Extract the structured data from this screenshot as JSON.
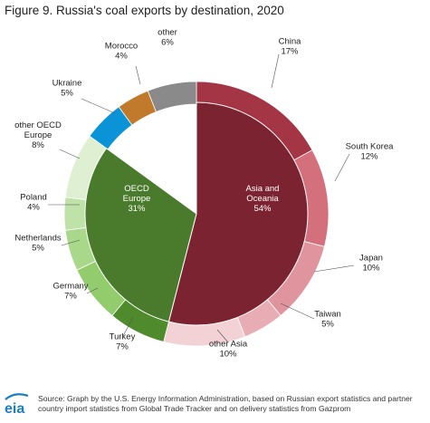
{
  "title": "Figure 9. Russia's coal exports by destination, 2020",
  "source": "Source: Graph by the U.S. Energy Information Administration, based on Russian export statistics and partner country import statistics from Global Trade Tracker and on delivery statistics from Gazprom",
  "logo_text": "eia",
  "colors": {
    "asia_center": "#7b2331",
    "oecd_center": "#4a7a2b",
    "ukraine": "#0b93d8",
    "morocco": "#c17a2b",
    "other": "#8a8a8a"
  },
  "chart_data": {
    "type": "pie",
    "subtype": "nested-donut",
    "title": "Figure 9. Russia's coal exports by destination, 2020",
    "unit": "%",
    "inner": [
      {
        "name": "Asia and Oceania",
        "value": 54,
        "color": "#7b2331"
      },
      {
        "name": "OECD Europe",
        "value": 31,
        "color": "#4a7a2b"
      }
    ],
    "outer": [
      {
        "name": "China",
        "value": 17,
        "color": "#a33545"
      },
      {
        "name": "South Korea",
        "value": 12,
        "color": "#d46f7c"
      },
      {
        "name": "Japan",
        "value": 10,
        "color": "#e0949d"
      },
      {
        "name": "Taiwan",
        "value": 5,
        "color": "#e8adb4"
      },
      {
        "name": "other Asia",
        "value": 10,
        "color": "#f2d2d5"
      },
      {
        "name": "Turkey",
        "value": 7,
        "color": "#4f8a2c"
      },
      {
        "name": "Germany",
        "value": 7,
        "color": "#93cc6c"
      },
      {
        "name": "Netherlands",
        "value": 5,
        "color": "#a9d88a"
      },
      {
        "name": "Poland",
        "value": 4,
        "color": "#bfe2a8"
      },
      {
        "name": "other OECD Europe",
        "value": 8,
        "color": "#dff0d2"
      },
      {
        "name": "Ukraine",
        "value": 5,
        "color": "#0b93d8"
      },
      {
        "name": "Morocco",
        "value": 4,
        "color": "#c17a2b"
      },
      {
        "name": "other",
        "value": 6,
        "color": "#8a8a8a"
      }
    ],
    "labels": [
      {
        "key": "China",
        "lines": [
          "China",
          "17%"
        ]
      },
      {
        "key": "South Korea",
        "lines": [
          "South Korea",
          "12%"
        ]
      },
      {
        "key": "Japan",
        "lines": [
          "Japan",
          "10%"
        ]
      },
      {
        "key": "Taiwan",
        "lines": [
          "Taiwan",
          "5%"
        ]
      },
      {
        "key": "other Asia",
        "lines": [
          "other Asia",
          "10%"
        ]
      },
      {
        "key": "Turkey",
        "lines": [
          "Turkey",
          "7%"
        ]
      },
      {
        "key": "Germany",
        "lines": [
          "Germany",
          "7%"
        ]
      },
      {
        "key": "Netherlands",
        "lines": [
          "Netherlands",
          "5%"
        ]
      },
      {
        "key": "Poland",
        "lines": [
          "Poland",
          "4%"
        ]
      },
      {
        "key": "other OECD Europe",
        "lines": [
          "other OECD",
          "Europe",
          "8%"
        ]
      },
      {
        "key": "Ukraine",
        "lines": [
          "Ukraine",
          "5%"
        ]
      },
      {
        "key": "Morocco",
        "lines": [
          "Morocco",
          "4%"
        ]
      },
      {
        "key": "other",
        "lines": [
          "other",
          "6%"
        ]
      },
      {
        "key": "Asia and Oceania",
        "lines": [
          "Asia and",
          "Oceania",
          "54%"
        ]
      },
      {
        "key": "OECD Europe",
        "lines": [
          "OECD",
          "Europe",
          "31%"
        ]
      }
    ]
  }
}
